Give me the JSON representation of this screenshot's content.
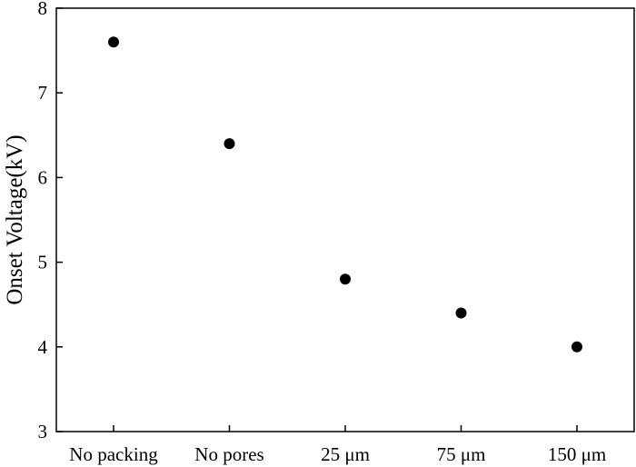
{
  "chart_data": {
    "type": "scatter",
    "title": "",
    "xlabel": "",
    "ylabel": "Onset Voltage(kV)",
    "categories": [
      "No packing",
      "No pores",
      "25 μm",
      "75 μm",
      "150 μm"
    ],
    "values": [
      7.6,
      6.4,
      4.8,
      4.4,
      4.0
    ],
    "ylim": [
      3,
      8
    ],
    "yticks": [
      3,
      4,
      5,
      6,
      7,
      8
    ],
    "grid": false,
    "legend": "none",
    "marker_color": "#000000"
  }
}
